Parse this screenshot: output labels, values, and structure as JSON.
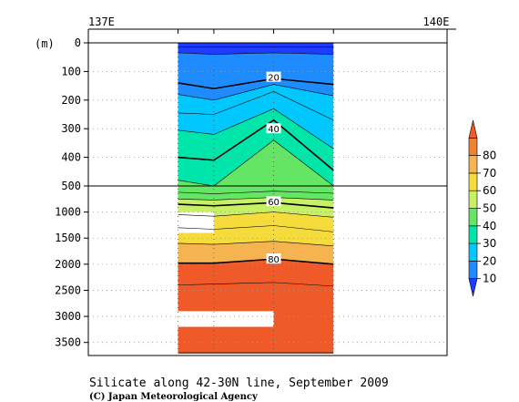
{
  "chart_data": {
    "type": "heatmap",
    "title": "Silicate along 42-30N line, September 2009",
    "credit": "(C) Japan Meteorological Agency",
    "ylabel": "(m)",
    "x_tick_labels": [
      "137E",
      "140E"
    ],
    "x_ticks": [
      137,
      140
    ],
    "xlim": [
      137,
      140
    ],
    "ylim_upper": [
      0,
      500
    ],
    "ylim_lower": [
      500,
      3750
    ],
    "y_tick_labels": [
      "0",
      "100",
      "200",
      "300",
      "400",
      "500",
      "1000",
      "1500",
      "2000",
      "2500",
      "3000",
      "3500"
    ],
    "y_ticks": [
      0,
      100,
      200,
      300,
      400,
      500,
      1000,
      1500,
      2000,
      2500,
      3000,
      3500
    ],
    "stations_lon": [
      137.75,
      138.05,
      138.55,
      139.05
    ],
    "bottom_depth": 3700,
    "contour_labels": [
      {
        "text": "20",
        "lon": 138.55,
        "depth": 120
      },
      {
        "text": "40",
        "lon": 138.55,
        "depth": 300
      },
      {
        "text": "60",
        "lon": 138.55,
        "depth": 800
      },
      {
        "text": "80",
        "lon": 138.55,
        "depth": 1900
      }
    ],
    "colorbar": {
      "levels": [
        10,
        20,
        30,
        40,
        50,
        60,
        70,
        80
      ],
      "colors": [
        "#1e3cff",
        "#1e8cff",
        "#00c8ff",
        "#00e6aa",
        "#64e664",
        "#c8f064",
        "#f5dc3c",
        "#f5b450",
        "#f08232",
        "#f05a28"
      ],
      "labels": [
        "10",
        "20",
        "30",
        "40",
        "50",
        "60",
        "70",
        "80"
      ]
    },
    "isolines": [
      {
        "value": 10,
        "depths": [
          15,
          15,
          15,
          15
        ]
      },
      {
        "value": 15,
        "depths": [
          35,
          40,
          35,
          40
        ]
      },
      {
        "value": 20,
        "depths": [
          140,
          160,
          125,
          145
        ]
      },
      {
        "value": 25,
        "depths": [
          180,
          200,
          145,
          185
        ]
      },
      {
        "value": 30,
        "depths": [
          245,
          250,
          170,
          270
        ]
      },
      {
        "value": 35,
        "depths": [
          305,
          320,
          230,
          370
        ]
      },
      {
        "value": 40,
        "depths": [
          400,
          410,
          270,
          445
        ]
      },
      {
        "value": 45,
        "depths": [
          480,
          500,
          340,
          500
        ]
      },
      {
        "value": 50,
        "depths": [
          620,
          650,
          600,
          640
        ]
      },
      {
        "value": 55,
        "depths": [
          750,
          770,
          720,
          770
        ]
      },
      {
        "value": 60,
        "depths": [
          850,
          880,
          820,
          920
        ]
      },
      {
        "value": 65,
        "depths": [
          1050,
          1080,
          1000,
          1100
        ]
      },
      {
        "value": 70,
        "depths": [
          1300,
          1330,
          1260,
          1380
        ]
      },
      {
        "value": 75,
        "depths": [
          1600,
          1620,
          1560,
          1650
        ]
      },
      {
        "value": 80,
        "depths": [
          1980,
          1980,
          1900,
          2000
        ]
      },
      {
        "value": 85,
        "depths": [
          2400,
          2380,
          2350,
          2420
        ]
      }
    ],
    "bold_isolines": [
      20,
      40,
      60,
      80
    ],
    "missing_blocks": [
      {
        "lon_from": 137.75,
        "lon_to": 138.05,
        "depth_from": 1000,
        "depth_to": 1400
      },
      {
        "lon_from": 137.75,
        "lon_to": 138.55,
        "depth_from": 2900,
        "depth_to": 3200
      }
    ],
    "grid": "dotted"
  }
}
